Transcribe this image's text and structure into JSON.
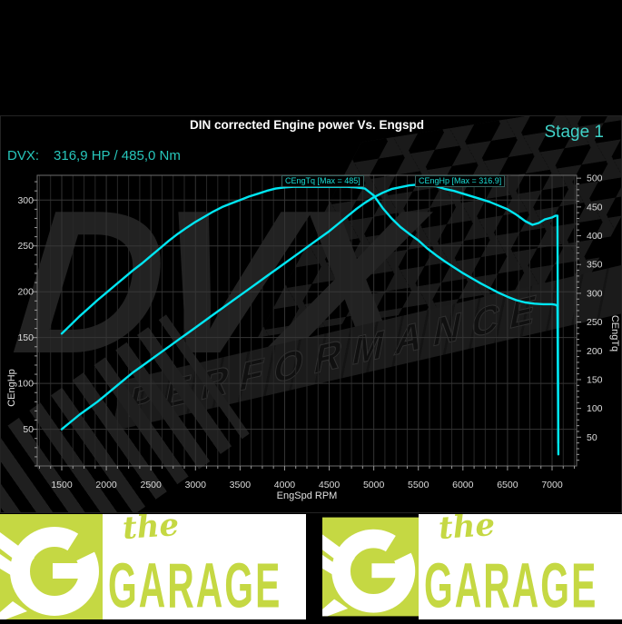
{
  "header": {
    "title": "DIN corrected Engine power Vs. Engspd",
    "stage_label": "Stage 1",
    "result_prefix": "DVX:",
    "result_value": "316,9 HP / 485,0 Nm"
  },
  "watermark": {
    "brand": "DVX",
    "banner": "PERFORMANCE"
  },
  "chart_data": {
    "type": "line",
    "title": "DIN corrected Engine power Vs. Engspd",
    "xlabel": "EngSpd RPM",
    "ylabel_left": "CEngHp",
    "ylabel_right": "CEngTq",
    "x_range": [
      1225,
      7275
    ],
    "x_ticks": [
      1500,
      2000,
      2500,
      3000,
      3500,
      4000,
      4500,
      5000,
      5500,
      6000,
      6500,
      7000
    ],
    "x_minor_step": 125,
    "left_range": [
      10,
      327
    ],
    "left_ticks": [
      50,
      100,
      150,
      200,
      250,
      300
    ],
    "left_minor_step": 10,
    "right_range": [
      0,
      505
    ],
    "right_ticks": [
      50,
      100,
      150,
      200,
      250,
      300,
      350,
      400,
      450,
      500
    ],
    "right_minor_step": 10,
    "grid": true,
    "line_color": "#00e6f2",
    "legend_position": "inline-top",
    "series": [
      {
        "name": "CEngHp",
        "axis": "left",
        "unit": "HP",
        "max": 316.9,
        "annotation": "CEngHp [Max = 316.9]",
        "points": [
          [
            1500,
            50
          ],
          [
            1600,
            58
          ],
          [
            1700,
            66
          ],
          [
            1800,
            73
          ],
          [
            1900,
            80
          ],
          [
            2000,
            88
          ],
          [
            2100,
            96
          ],
          [
            2200,
            104
          ],
          [
            2300,
            112
          ],
          [
            2400,
            119
          ],
          [
            2500,
            126
          ],
          [
            2600,
            133
          ],
          [
            2700,
            140
          ],
          [
            2800,
            147
          ],
          [
            2900,
            154
          ],
          [
            3000,
            161
          ],
          [
            3100,
            168
          ],
          [
            3200,
            175
          ],
          [
            3300,
            182
          ],
          [
            3400,
            189
          ],
          [
            3500,
            196
          ],
          [
            3600,
            203
          ],
          [
            3700,
            210
          ],
          [
            3800,
            217
          ],
          [
            3900,
            224
          ],
          [
            4000,
            231
          ],
          [
            4100,
            238
          ],
          [
            4200,
            245
          ],
          [
            4300,
            252
          ],
          [
            4400,
            259
          ],
          [
            4500,
            266
          ],
          [
            4600,
            274
          ],
          [
            4700,
            282
          ],
          [
            4800,
            290
          ],
          [
            4900,
            297
          ],
          [
            5000,
            303
          ],
          [
            5100,
            308
          ],
          [
            5200,
            312
          ],
          [
            5300,
            314
          ],
          [
            5400,
            316
          ],
          [
            5500,
            316.9
          ],
          [
            5600,
            316
          ],
          [
            5700,
            315
          ],
          [
            5800,
            312
          ],
          [
            5900,
            310
          ],
          [
            6000,
            307
          ],
          [
            6100,
            304
          ],
          [
            6200,
            301
          ],
          [
            6300,
            298
          ],
          [
            6400,
            294
          ],
          [
            6500,
            290
          ],
          [
            6600,
            284
          ],
          [
            6700,
            277
          ],
          [
            6780,
            273
          ],
          [
            6850,
            275
          ],
          [
            6920,
            279
          ],
          [
            7000,
            281
          ],
          [
            7040,
            283
          ],
          [
            7060,
            283
          ],
          [
            7070,
            35
          ]
        ]
      },
      {
        "name": "CEngTq",
        "axis": "right",
        "unit": "Nm",
        "max": 485,
        "annotation": "CEngTq [Max = 485]",
        "points": [
          [
            1500,
            230
          ],
          [
            1600,
            245
          ],
          [
            1700,
            260
          ],
          [
            1800,
            274
          ],
          [
            1900,
            288
          ],
          [
            2000,
            301
          ],
          [
            2100,
            314
          ],
          [
            2200,
            327
          ],
          [
            2300,
            340
          ],
          [
            2400,
            352
          ],
          [
            2500,
            365
          ],
          [
            2600,
            378
          ],
          [
            2700,
            391
          ],
          [
            2800,
            403
          ],
          [
            2900,
            414
          ],
          [
            3000,
            424
          ],
          [
            3100,
            433
          ],
          [
            3200,
            442
          ],
          [
            3300,
            450
          ],
          [
            3400,
            456
          ],
          [
            3500,
            462
          ],
          [
            3600,
            468
          ],
          [
            3700,
            473
          ],
          [
            3800,
            478
          ],
          [
            3900,
            482
          ],
          [
            4000,
            484
          ],
          [
            4100,
            485
          ],
          [
            4300,
            485
          ],
          [
            4500,
            485
          ],
          [
            4700,
            485
          ],
          [
            4800,
            484
          ],
          [
            4900,
            482
          ],
          [
            5000,
            470
          ],
          [
            5100,
            448
          ],
          [
            5200,
            430
          ],
          [
            5300,
            415
          ],
          [
            5400,
            403
          ],
          [
            5500,
            392
          ],
          [
            5600,
            378
          ],
          [
            5700,
            366
          ],
          [
            5800,
            355
          ],
          [
            5900,
            345
          ],
          [
            6000,
            335
          ],
          [
            6100,
            326
          ],
          [
            6200,
            317
          ],
          [
            6300,
            309
          ],
          [
            6400,
            301
          ],
          [
            6500,
            294
          ],
          [
            6600,
            288
          ],
          [
            6700,
            284
          ],
          [
            6800,
            282
          ],
          [
            6900,
            281
          ],
          [
            7000,
            281
          ],
          [
            7040,
            280
          ],
          [
            7060,
            278
          ],
          [
            7070,
            20
          ]
        ]
      }
    ]
  },
  "footer": {
    "script_word": "the",
    "brand_word": "GARAGE",
    "lime": "#c5d843"
  }
}
